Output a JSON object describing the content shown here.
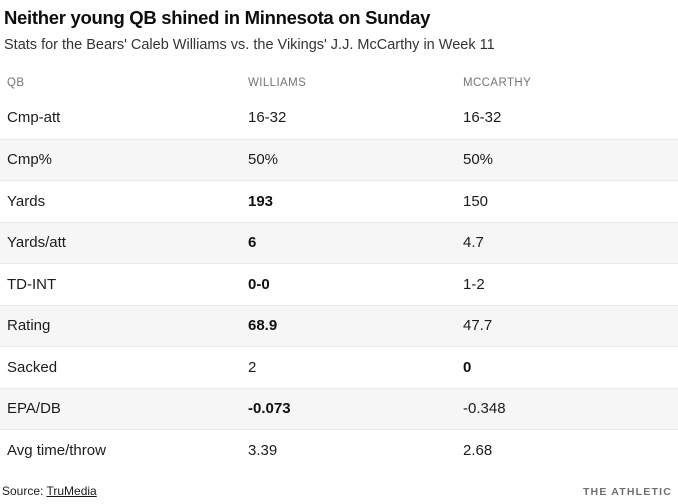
{
  "header": {
    "title": "Neither young QB shined in Minnesota on Sunday",
    "subtitle": "Stats for the Bears' Caleb Williams vs. the Vikings' J.J. McCarthy in Week 11"
  },
  "table": {
    "columns": [
      "QB",
      "WILLIAMS",
      "MCCARTHY"
    ],
    "rows": [
      {
        "label": "Cmp-att",
        "williams": "16-32",
        "mccarthy": "16-32",
        "williams_bold": false,
        "mccarthy_bold": false
      },
      {
        "label": "Cmp%",
        "williams": "50%",
        "mccarthy": "50%",
        "williams_bold": false,
        "mccarthy_bold": false
      },
      {
        "label": "Yards",
        "williams": "193",
        "mccarthy": "150",
        "williams_bold": true,
        "mccarthy_bold": false
      },
      {
        "label": "Yards/att",
        "williams": "6",
        "mccarthy": "4.7",
        "williams_bold": true,
        "mccarthy_bold": false
      },
      {
        "label": "TD-INT",
        "williams": "0-0",
        "mccarthy": "1-2",
        "williams_bold": true,
        "mccarthy_bold": false
      },
      {
        "label": "Rating",
        "williams": "68.9",
        "mccarthy": "47.7",
        "williams_bold": true,
        "mccarthy_bold": false
      },
      {
        "label": "Sacked",
        "williams": "2",
        "mccarthy": "0",
        "williams_bold": false,
        "mccarthy_bold": true
      },
      {
        "label": "EPA/DB",
        "williams": "-0.073",
        "mccarthy": "-0.348",
        "williams_bold": true,
        "mccarthy_bold": false
      },
      {
        "label": "Avg time/throw",
        "williams": "3.39",
        "mccarthy": "2.68",
        "williams_bold": false,
        "mccarthy_bold": false
      }
    ]
  },
  "footer": {
    "source_label": "Source: ",
    "source_link": "TruMedia",
    "brand": "THE ATHLETIC"
  },
  "colors": {
    "zebra_row": "#f6f6f6",
    "row_border": "#e9e9e9",
    "column_header_text": "#757575",
    "brand_text": "#6f6f6f"
  }
}
